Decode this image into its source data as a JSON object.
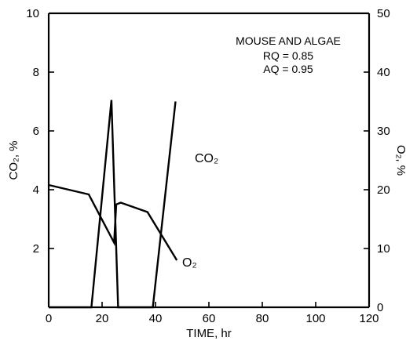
{
  "chart_data": {
    "type": "line",
    "xlabel": "TIME, hr",
    "ylabel_left": "CO₂, %",
    "ylabel_right": "O₂, %",
    "xlim": [
      0,
      120
    ],
    "ylim_left": [
      0,
      10
    ],
    "ylim_right": [
      0,
      50
    ],
    "x_ticks": [
      "0",
      "20",
      "40",
      "60",
      "80",
      "100",
      "120"
    ],
    "y_left_ticks": [
      "2",
      "4",
      "6",
      "8",
      "10"
    ],
    "y_right_ticks": [
      "0",
      "10",
      "20",
      "30",
      "40",
      "50"
    ],
    "grid": false,
    "annotation": {
      "line1": "MOUSE AND ALGAE",
      "line2": "RQ = 0.85",
      "line3": "AQ = 0.95"
    },
    "series": [
      {
        "name": "CO₂",
        "axis": "left",
        "points": [
          [
            0,
            0
          ],
          [
            16,
            0
          ],
          [
            23.5,
            7.05
          ],
          [
            26,
            0
          ],
          [
            39,
            0
          ],
          [
            47.5,
            7.0
          ]
        ]
      },
      {
        "name": "O₂",
        "axis": "right",
        "points": [
          [
            0,
            20.8
          ],
          [
            15,
            19.2
          ],
          [
            24.5,
            11.0
          ],
          [
            25.3,
            17.5
          ],
          [
            27,
            17.8
          ],
          [
            37,
            16.2
          ],
          [
            48,
            8.0
          ]
        ]
      }
    ]
  }
}
